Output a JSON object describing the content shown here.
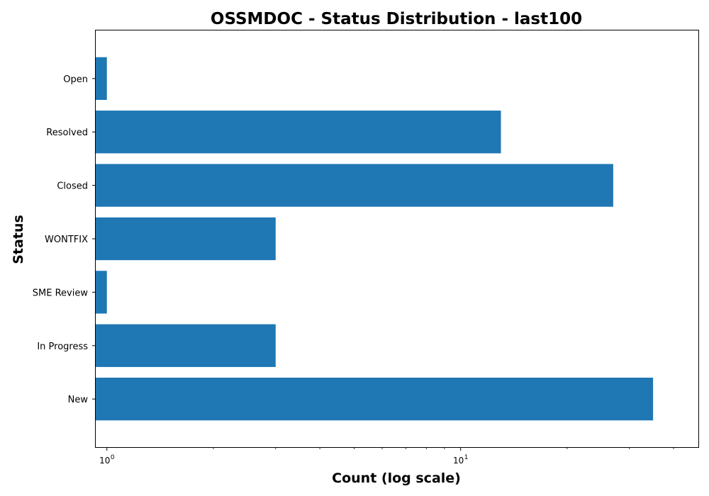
{
  "chart_data": {
    "type": "bar",
    "orientation": "horizontal",
    "title": "OSSMDOC - Status Distribution - last100",
    "xlabel": "Count (log scale)",
    "ylabel": "Status",
    "x_scale": "log",
    "xlim": [
      0.93,
      47
    ],
    "x_ticks": [
      {
        "base": "10",
        "exp": "0"
      },
      {
        "base": "10",
        "exp": "1"
      }
    ],
    "categories": [
      "New",
      "In Progress",
      "SME Review",
      "WONTFIX",
      "Closed",
      "Resolved",
      "Open"
    ],
    "values": [
      35,
      3,
      1,
      3,
      27,
      13,
      1
    ],
    "bar_color": "#1f77b4",
    "grid": false,
    "legend": "none"
  }
}
